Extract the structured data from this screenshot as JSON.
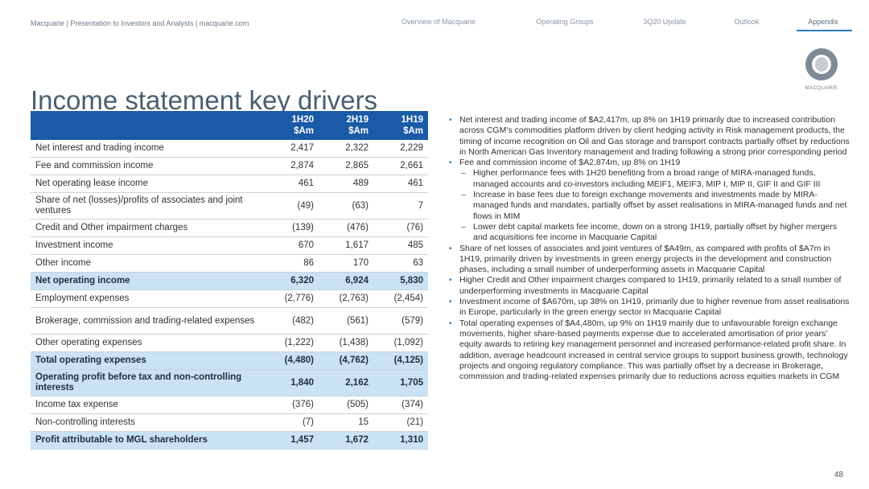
{
  "header": {
    "breadcrumb": "Macquarie  |  Presentation to Investors and Analysts  |  macquarie.com",
    "nav": [
      {
        "label": "Overview of Macquarie"
      },
      {
        "label": "Operating Groups"
      },
      {
        "label": "3Q20 Update"
      },
      {
        "label": "Outlook"
      },
      {
        "label": "Appendix"
      }
    ],
    "active_nav": "Appendix"
  },
  "logo": {
    "text": "MACQUARIE"
  },
  "title": "Income statement key drivers",
  "table": {
    "columns": [
      "1H20\n$Am",
      "2H19\n$Am",
      "1H19\n$Am"
    ],
    "col1": [
      "1H20",
      "$Am"
    ],
    "col2": [
      "2H19",
      "$Am"
    ],
    "col3": [
      "1H19",
      "$Am"
    ],
    "rows": [
      {
        "label": "Net interest and trading income",
        "v1": "2,417",
        "v2": "2,322",
        "v3": "2,229"
      },
      {
        "label": "Fee and commission income",
        "v1": "2,874",
        "v2": "2,865",
        "v3": "2,661"
      },
      {
        "label": "Net operating lease income",
        "v1": "461",
        "v2": "489",
        "v3": "461"
      },
      {
        "label": "Share of net (losses)/profits of associates and joint ventures",
        "v1": "(49)",
        "v2": "(63)",
        "v3": "7"
      },
      {
        "label": "Credit and Other impairment charges",
        "v1": "(139)",
        "v2": "(476)",
        "v3": "(76)"
      },
      {
        "label": "Investment income",
        "v1": "670",
        "v2": "1,617",
        "v3": "485"
      },
      {
        "label": "Other income",
        "v1": "86",
        "v2": "170",
        "v3": "63"
      },
      {
        "label": "Net operating income",
        "v1": "6,320",
        "v2": "6,924",
        "v3": "5,830"
      },
      {
        "label": "Employment expenses",
        "v1": "(2,776)",
        "v2": "(2,763)",
        "v3": "(2,454)"
      },
      {
        "label": "Brokerage, commission and trading-related expenses",
        "v1": "(482)",
        "v2": "(561)",
        "v3": "(579)"
      },
      {
        "label": "Other operating expenses",
        "v1": "(1,222)",
        "v2": "(1,438)",
        "v3": "(1,092)"
      },
      {
        "label": "Total operating expenses",
        "v1": "(4,480)",
        "v2": "(4,762)",
        "v3": "(4,125)"
      },
      {
        "label": "Operating profit before tax and non-controlling interests",
        "v1": "1,840",
        "v2": "2,162",
        "v3": "1,705"
      },
      {
        "label": "Income tax expense",
        "v1": "(376)",
        "v2": "(505)",
        "v3": "(374)"
      },
      {
        "label": "Non-controlling interests",
        "v1": "(7)",
        "v2": "15",
        "v3": "(21)"
      },
      {
        "label": "Profit attributable to MGL shareholders",
        "v1": "1,457",
        "v2": "1,672",
        "v3": "1,310"
      }
    ]
  },
  "bullets": [
    {
      "text": "Net interest and trading income of $A2,417m, up 8% on 1H19 primarily due to increased contribution across CGM’s commodities platform driven by client hedging activity in Risk management products, the timing of income recognition on Oil and Gas storage and transport contracts partially offset by reductions in North American Gas Inventory management and trading following a strong prior corresponding period",
      "subs": []
    },
    {
      "text": "Fee and commission income of $A2,874m, up 8% on 1H19",
      "subs": [
        "Higher performance fees with 1H20 benefiting from a broad range of MIRA-managed funds, managed accounts and co-investors including MEIF1, MEIF3, MIP I, MIP II, GIF II and GIF III",
        "Increase in base fees due to foreign exchange movements and investments made by MIRA-managed funds and mandates, partially offset by asset realisations in MIRA-managed funds and net flows in MIM",
        "Lower debt capital markets fee income, down on a strong 1H19, partially offset by higher mergers and acquisitions fee income in Macquarie Capital"
      ]
    },
    {
      "text": "Share of net losses of associates and joint ventures of $A49m, as compared with profits of $A7m in 1H19, primarily driven by investments in green energy projects in the development and construction phases, including a small number of underperforming assets in Macquarie Capital",
      "subs": []
    },
    {
      "text": "Higher Credit and Other impairment charges compared to 1H19, primarily related to a small number of underperforming investments in Macquarie Capital",
      "subs": []
    },
    {
      "text": "Investment income of $A670m, up 38% on 1H19, primarily due to higher revenue from asset realisations in Europe, particularly in the green energy sector in Macquarie Capital",
      "subs": []
    },
    {
      "text": "Total operating expenses of $A4,480m, up 9% on 1H19 mainly due to unfavourable foreign exchange movements, higher share-based payments expense due to accelerated amortisation of prior years’ equity awards to retiring key management personnel and increased performance-related profit share. In addition, average headcount increased in central service groups to support business growth, technology projects and ongoing regulatory compliance. This was partially offset by a decrease in Brokerage, commission and trading-related expenses primarily due to reductions across equities markets in CGM",
      "subs": []
    }
  ],
  "page_number": "48"
}
